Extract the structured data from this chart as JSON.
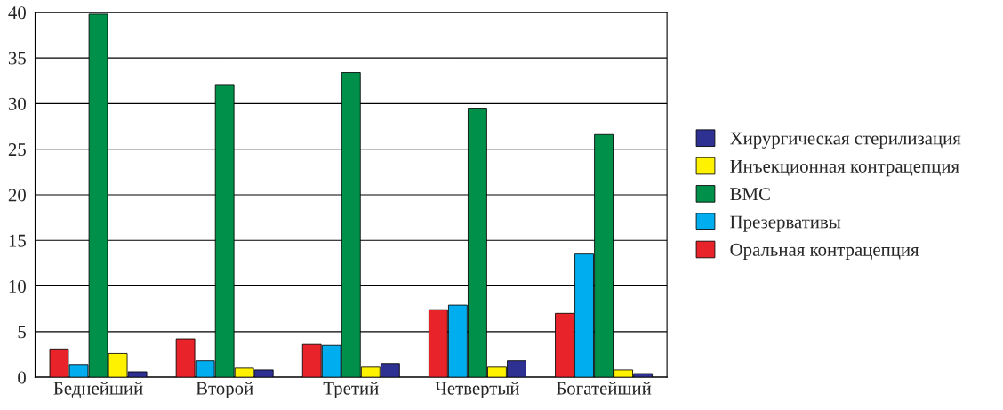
{
  "chart_data": {
    "type": "bar",
    "categories": [
      "Беднейший",
      "Второй",
      "Третий",
      "Четвертый",
      "Богатейший"
    ],
    "series": [
      {
        "name": "Оральная контрацепция",
        "color": "#e8232a",
        "values": [
          3.1,
          4.2,
          3.6,
          7.4,
          7.0
        ]
      },
      {
        "name": "Презервативы",
        "color": "#00aeef",
        "values": [
          1.4,
          1.8,
          3.5,
          7.9,
          13.5
        ]
      },
      {
        "name": "ВМС",
        "color": "#00904a",
        "values": [
          39.8,
          32.0,
          33.4,
          29.5,
          26.6
        ]
      },
      {
        "name": "Инъекционная контрацепция",
        "color": "#fff200",
        "values": [
          2.6,
          1.0,
          1.1,
          1.1,
          0.8
        ]
      },
      {
        "name": "Хирургическая стерилизация",
        "color": "#2e3192",
        "values": [
          0.6,
          0.8,
          1.5,
          1.8,
          0.4
        ]
      }
    ],
    "ylim": [
      0,
      40
    ],
    "yticks": [
      0,
      5,
      10,
      15,
      20,
      25,
      30,
      35,
      40
    ],
    "grid": "y",
    "legend": "right"
  }
}
